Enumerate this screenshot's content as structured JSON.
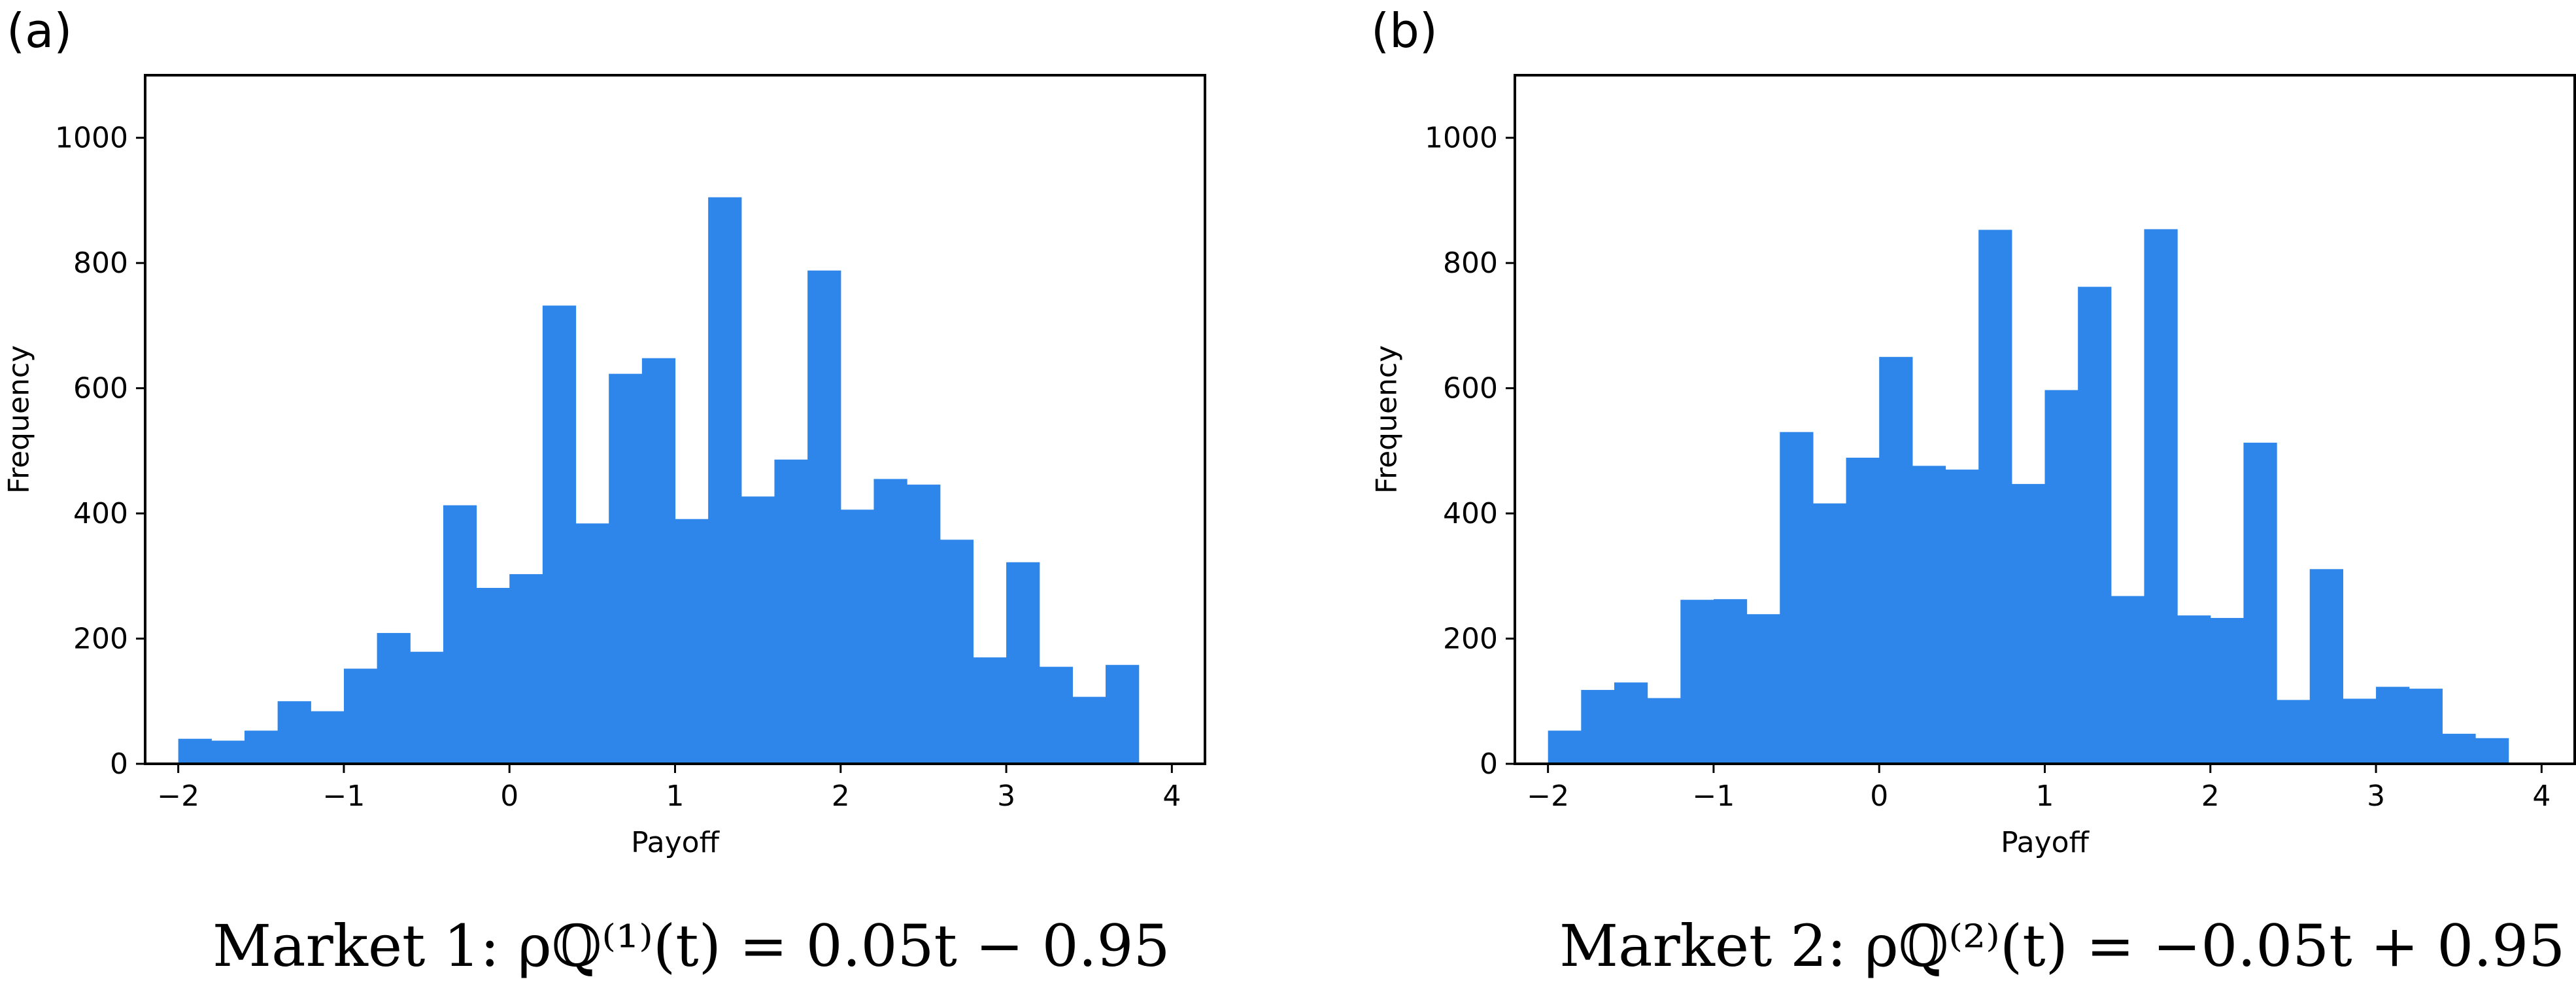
{
  "panels": [
    {
      "label": "(a)",
      "caption": "Market 1: ρℚ⁽¹⁾(t) = 0.05t − 0.95"
    },
    {
      "label": "(b)",
      "caption": "Market 2: ρℚ⁽²⁾(t) = −0.05t + 0.95"
    }
  ],
  "colors": {
    "bar": "#2e86eb"
  },
  "chart_data": [
    {
      "type": "bar",
      "title": "",
      "xlabel": "Payoff",
      "ylabel": "Frequency",
      "xlim": [
        -2.2,
        4.2
      ],
      "ylim": [
        0,
        1100
      ],
      "x_ticks": [
        -2,
        -1,
        0,
        1,
        2,
        3,
        4
      ],
      "x_tick_labels": [
        "−2",
        "−1",
        "0",
        "1",
        "2",
        "3",
        "4"
      ],
      "y_ticks": [
        0,
        200,
        400,
        600,
        800,
        1000
      ],
      "y_tick_labels": [
        "0",
        "200",
        "400",
        "600",
        "800",
        "1000"
      ],
      "bins": {
        "start": -2.0,
        "width": 0.2,
        "count": 29
      },
      "values": [
        40,
        37,
        53,
        100,
        84,
        152,
        209,
        179,
        413,
        281,
        303,
        732,
        384,
        623,
        648,
        391,
        905,
        427,
        486,
        788,
        406,
        455,
        446,
        358,
        170,
        322,
        155,
        107,
        158
      ],
      "grid": false
    },
    {
      "type": "bar",
      "title": "",
      "xlabel": "Payoff",
      "ylabel": "Frequency",
      "xlim": [
        -2.2,
        4.2
      ],
      "ylim": [
        0,
        1100
      ],
      "x_ticks": [
        -2,
        -1,
        0,
        1,
        2,
        3,
        4
      ],
      "x_tick_labels": [
        "−2",
        "−1",
        "0",
        "1",
        "2",
        "3",
        "4"
      ],
      "y_ticks": [
        0,
        200,
        400,
        600,
        800,
        1000
      ],
      "y_tick_labels": [
        "0",
        "200",
        "400",
        "600",
        "800",
        "1000"
      ],
      "bins": {
        "start": -2.0,
        "width": 0.2,
        "count": 29
      },
      "values": [
        53,
        118,
        130,
        105,
        262,
        263,
        239,
        530,
        416,
        489,
        650,
        476,
        470,
        853,
        447,
        597,
        762,
        268,
        854,
        237,
        233,
        513,
        102,
        311,
        104,
        123,
        120,
        48,
        41
      ],
      "grid": false
    }
  ]
}
